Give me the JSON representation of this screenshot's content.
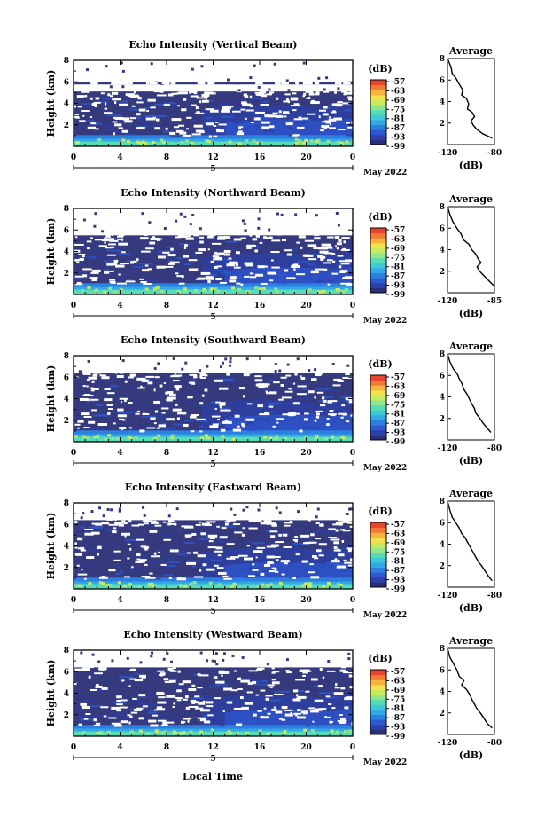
{
  "chart_data": {
    "type": "heatmap",
    "figure_xlabel": "Local Time",
    "date_label": "May 2022",
    "time_ticks": [
      "0",
      "4",
      "8",
      "12",
      "16",
      "20",
      "0"
    ],
    "day_marker": "5",
    "xlim_hours": [
      0,
      24
    ],
    "height_ticks": [
      "8",
      "6",
      "4",
      "2"
    ],
    "ylabel": "Height (km)",
    "ylim_km": [
      0,
      8
    ],
    "colorbar": {
      "unit": "(dB)",
      "tick_labels": [
        "-57",
        "-63",
        "-69",
        "-75",
        "-81",
        "-87",
        "-93",
        "-99"
      ],
      "range_db": [
        -99,
        -57
      ],
      "colors": [
        "#2b2f7a",
        "#2c40a8",
        "#2f57d2",
        "#2d7fe0",
        "#33a8e6",
        "#3cc9d8",
        "#56dcb6",
        "#8fe68c",
        "#c8ea5e",
        "#f2e24b",
        "#f8b23d",
        "#f27a33",
        "#e8452f"
      ]
    },
    "background_color": "#343a7d",
    "average": {
      "title": "Average",
      "xlabel": "(dB)",
      "x_ticks": [
        "-120",
        "-80"
      ],
      "xlim_db": [
        -120,
        -80
      ],
      "y_ticks": [
        "8",
        "6",
        "4",
        "2"
      ]
    },
    "panels": [
      {
        "title": "Echo Intensity (Vertical Beam)",
        "echo_top_km": 5.1,
        "band_top_km": 6.0,
        "avg_x_ticks": [
          "-120",
          "-80"
        ],
        "avg_profile": [
          [
            -120,
            8.0
          ],
          [
            -117,
            7.2
          ],
          [
            -116,
            6.6
          ],
          [
            -113,
            6.2
          ],
          [
            -110,
            5.6
          ],
          [
            -107,
            5.1
          ],
          [
            -108,
            4.6
          ],
          [
            -104,
            4.3
          ],
          [
            -102,
            3.8
          ],
          [
            -103,
            3.3
          ],
          [
            -99,
            3.0
          ],
          [
            -97,
            2.6
          ],
          [
            -100,
            2.2
          ],
          [
            -98,
            1.8
          ],
          [
            -95,
            1.4
          ],
          [
            -90,
            1.0
          ],
          [
            -82,
            0.6
          ]
        ]
      },
      {
        "title": "Echo Intensity (Northward Beam)",
        "echo_top_km": 5.5,
        "band_top_km": 5.5,
        "avg_x_ticks": [
          "-120",
          "-85"
        ],
        "avg_profile": [
          [
            -120,
            8.0
          ],
          [
            -118,
            7.2
          ],
          [
            -116,
            6.6
          ],
          [
            -113,
            6.0
          ],
          [
            -110,
            5.5
          ],
          [
            -108,
            4.9
          ],
          [
            -104,
            4.5
          ],
          [
            -102,
            4.0
          ],
          [
            -99,
            3.6
          ],
          [
            -97,
            3.1
          ],
          [
            -95,
            2.8
          ],
          [
            -98,
            2.4
          ],
          [
            -96,
            2.0
          ],
          [
            -93,
            1.6
          ],
          [
            -89,
            1.1
          ],
          [
            -85,
            0.6
          ]
        ]
      },
      {
        "title": "Echo Intensity (Southward Beam)",
        "echo_top_km": 6.4,
        "band_top_km": 6.4,
        "avg_x_ticks": [
          "-120",
          "-80"
        ],
        "avg_profile": [
          [
            -120,
            8.0
          ],
          [
            -118,
            7.3
          ],
          [
            -115,
            6.6
          ],
          [
            -112,
            6.2
          ],
          [
            -110,
            5.7
          ],
          [
            -108,
            5.3
          ],
          [
            -106,
            4.7
          ],
          [
            -103,
            4.2
          ],
          [
            -101,
            3.7
          ],
          [
            -99,
            3.3
          ],
          [
            -97,
            2.9
          ],
          [
            -96,
            2.5
          ],
          [
            -93,
            2.1
          ],
          [
            -90,
            1.6
          ],
          [
            -87,
            1.2
          ],
          [
            -83,
            0.7
          ]
        ]
      },
      {
        "title": "Echo Intensity (Eastward Beam)",
        "echo_top_km": 6.4,
        "band_top_km": 6.4,
        "avg_x_ticks": [
          "-120",
          "-80"
        ],
        "avg_profile": [
          [
            -120,
            8.0
          ],
          [
            -118,
            7.2
          ],
          [
            -116,
            6.5
          ],
          [
            -113,
            6.0
          ],
          [
            -110,
            5.5
          ],
          [
            -108,
            5.0
          ],
          [
            -105,
            4.6
          ],
          [
            -103,
            4.2
          ],
          [
            -100,
            3.6
          ],
          [
            -98,
            3.2
          ],
          [
            -96,
            2.8
          ],
          [
            -94,
            2.4
          ],
          [
            -91,
            2.0
          ],
          [
            -88,
            1.5
          ],
          [
            -85,
            1.0
          ],
          [
            -82,
            0.6
          ]
        ]
      },
      {
        "title": "Echo Intensity (Westward Beam)",
        "echo_top_km": 6.4,
        "band_top_km": 6.4,
        "avg_x_ticks": [
          "-120",
          "-80"
        ],
        "avg_profile": [
          [
            -120,
            8.0
          ],
          [
            -118,
            7.2
          ],
          [
            -115,
            6.6
          ],
          [
            -112,
            6.0
          ],
          [
            -110,
            5.4
          ],
          [
            -106,
            5.0
          ],
          [
            -108,
            4.6
          ],
          [
            -104,
            4.2
          ],
          [
            -101,
            3.7
          ],
          [
            -99,
            3.2
          ],
          [
            -97,
            2.8
          ],
          [
            -95,
            2.4
          ],
          [
            -92,
            2.0
          ],
          [
            -89,
            1.5
          ],
          [
            -86,
            1.0
          ],
          [
            -82,
            0.6
          ]
        ]
      }
    ]
  }
}
